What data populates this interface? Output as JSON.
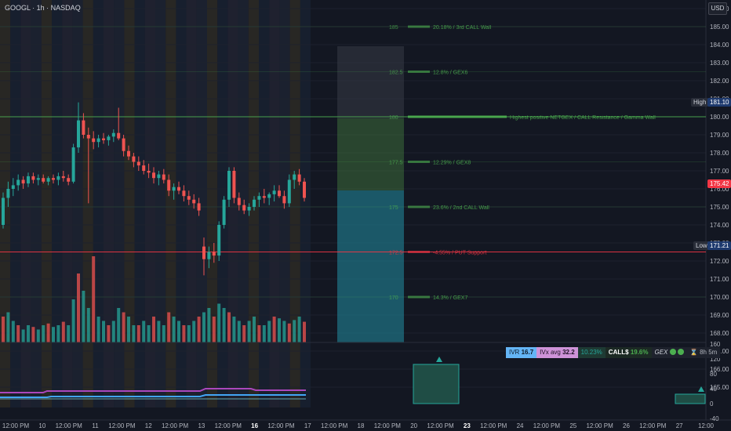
{
  "header": {
    "ticker": "GOOGL · 1h · NASDAQ",
    "currency": "USD"
  },
  "price_axis": {
    "ticks": [
      "186.00",
      "185.00",
      "184.00",
      "183.00",
      "182.00",
      "181.00",
      "180.00",
      "179.00",
      "178.00",
      "177.00",
      "176.00",
      "175.00",
      "174.00",
      "173.00",
      "172.00",
      "171.00",
      "170.00",
      "169.00",
      "168.00",
      "167.00",
      "166.00",
      "165.00"
    ],
    "high_label": "High",
    "high_value": "181.10",
    "low_label": "Low",
    "low_value": "171.21",
    "current_value": "175.42"
  },
  "osc_axis": {
    "ticks": [
      "160",
      "120",
      "80",
      "40",
      "0",
      "-40"
    ]
  },
  "time_axis": {
    "labels": [
      "12:00 PM",
      "10",
      "12:00 PM",
      "11",
      "12:00 PM",
      "12",
      "12:00 PM",
      "13",
      "12:00 PM",
      "16",
      "12:00 PM",
      "17",
      "12:00 PM",
      "18",
      "12:00 PM",
      "20",
      "12:00 PM",
      "23",
      "12:00 PM",
      "24",
      "12:00 PM",
      "25",
      "12:00 PM",
      "26",
      "12:00 PM",
      "27",
      "12:00"
    ]
  },
  "levels": [
    {
      "price": "185",
      "text": "20.18% / 3rd CALL Wall",
      "color": "#4caf50"
    },
    {
      "price": "182.5",
      "text": "12.8% / GEX6",
      "color": "#4caf50"
    },
    {
      "price": "180",
      "text": "Highest positive NETGEX / CALL Resistance / Gamma Wall",
      "color": "#4caf50"
    },
    {
      "price": "177.5",
      "text": "12.29% / GEX8",
      "color": "#4caf50"
    },
    {
      "price": "175",
      "text": "23.6% / 2nd CALL Wall",
      "color": "#4caf50"
    },
    {
      "price": "172.5",
      "text": "-4.55% / PUT Support",
      "color": "#f23645"
    },
    {
      "price": "170",
      "text": "14.3% / GEX7",
      "color": "#4caf50"
    }
  ],
  "gex_panel": {
    "ivr_label": "IVR",
    "ivr_value": "16.7",
    "ivx_label": "IVx avg",
    "ivx_value": "32.2",
    "change": "10.23%",
    "calls_label": "CALL$",
    "calls_value": "19.6%",
    "gex_label": "GEX",
    "timer": "8h 5m"
  },
  "colors": {
    "up": "#26a69a",
    "down": "#ef5350",
    "call": "#4caf50",
    "put": "#f23645",
    "bg": "#131722"
  }
}
